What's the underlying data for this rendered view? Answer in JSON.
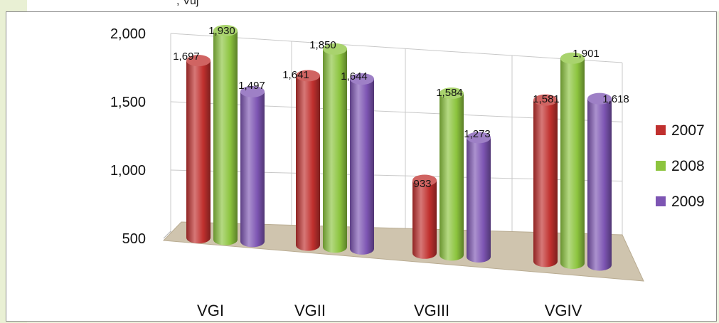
{
  "header": {
    "text": ", Vuj"
  },
  "chart_data": {
    "type": "bar",
    "categories": [
      "VGI",
      "VGII",
      "VGIII",
      "VGIV"
    ],
    "series": [
      {
        "name": "2007",
        "color": "#c0302e",
        "values": [
          1697,
          1641,
          933,
          1581
        ]
      },
      {
        "name": "2008",
        "color": "#8cc43e",
        "values": [
          1930,
          1850,
          1584,
          1901
        ]
      },
      {
        "name": "2009",
        "color": "#7d55b3",
        "values": [
          1497,
          1644,
          1273,
          1618
        ]
      }
    ],
    "value_labels": [
      [
        "1,697",
        "1,641",
        "933",
        "1,581"
      ],
      [
        "1,930",
        "1,850",
        "1,584",
        "1,901"
      ],
      [
        "1,497",
        "1,644",
        "1,273",
        "1,618"
      ]
    ],
    "y_ticks": [
      "500",
      "1,000",
      "1,500",
      "2,000"
    ],
    "ylim": [
      500,
      2000
    ],
    "grid": true,
    "legend_position": "right",
    "style": "3d-cylinder"
  }
}
